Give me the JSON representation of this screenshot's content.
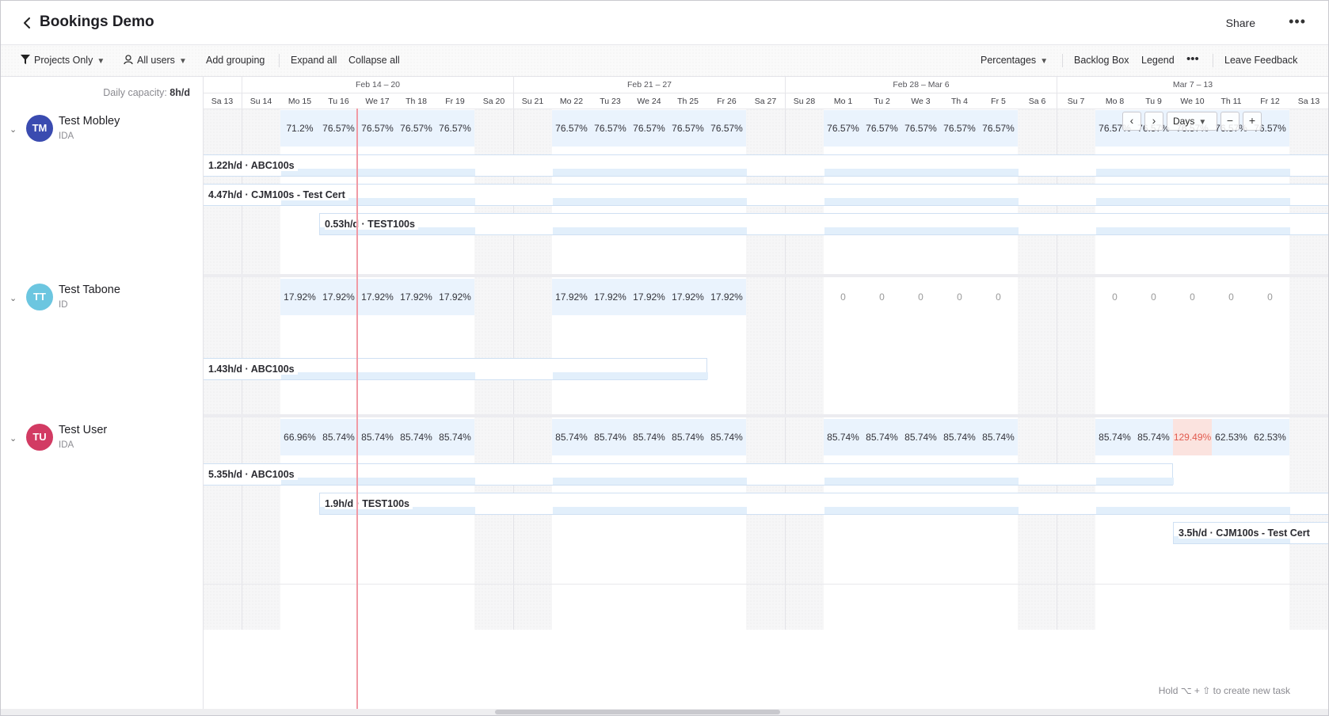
{
  "header": {
    "title": "Bookings Demo",
    "share": "Share",
    "more": "•••"
  },
  "toolbar": {
    "projects_only": "Projects Only",
    "all_users": "All users",
    "add_grouping": "Add grouping",
    "expand_all": "Expand all",
    "collapse_all": "Collapse all",
    "percentages": "Percentages",
    "backlog_box": "Backlog Box",
    "legend": "Legend",
    "more": "•••",
    "leave_feedback": "Leave Feedback"
  },
  "capacity": {
    "label": "Daily capacity:",
    "value": "8h/d"
  },
  "weeks": [
    "Feb 14 – 20",
    "Feb 21 – 27",
    "Feb 28 – Mar 6",
    "Mar 7 – 13"
  ],
  "days": [
    "Sa 13",
    "Su 14",
    "Mo 15",
    "Tu 16",
    "We 17",
    "Th 18",
    "Fr 19",
    "Sa 20",
    "Su 21",
    "Mo 22",
    "Tu 23",
    "We 24",
    "Th 25",
    "Fr 26",
    "Sa 27",
    "Su 28",
    "Mo 1",
    "Tu 2",
    "We 3",
    "Th 4",
    "Fr 5",
    "Sa 6",
    "Su 7",
    "Mo 8",
    "Tu 9",
    "We 10",
    "Th 11",
    "Fr 12",
    "Sa 13"
  ],
  "people": [
    {
      "initials": "TM",
      "name": "Test Mobley",
      "role": "IDA",
      "color": "#3a4bb0",
      "percentages": [
        "",
        "",
        "71.2%",
        "76.57%",
        "76.57%",
        "76.57%",
        "76.57%",
        "",
        "",
        "76.57%",
        "76.57%",
        "76.57%",
        "76.57%",
        "76.57%",
        "",
        "",
        "76.57%",
        "76.57%",
        "76.57%",
        "76.57%",
        "76.57%",
        "",
        "",
        "76.57%",
        "76.57%",
        "76.57%",
        "76.57%",
        "76.57%",
        ""
      ],
      "bookings": [
        {
          "label": "1.22h/d · ABC100s"
        },
        {
          "label": "4.47h/d · CJM100s - Test Cert"
        },
        {
          "label": "0.53h/d · TEST100s"
        }
      ]
    },
    {
      "initials": "TT",
      "name": "Test Tabone",
      "role": "ID",
      "color": "#6cc6e0",
      "percentages": [
        "",
        "",
        "17.92%",
        "17.92%",
        "17.92%",
        "17.92%",
        "17.92%",
        "",
        "",
        "17.92%",
        "17.92%",
        "17.92%",
        "17.92%",
        "17.92%",
        "",
        "",
        "0",
        "0",
        "0",
        "0",
        "0",
        "",
        "",
        "0",
        "0",
        "0",
        "0",
        "0",
        ""
      ],
      "bookings": [
        {
          "label": "1.43h/d · ABC100s"
        }
      ]
    },
    {
      "initials": "TU",
      "name": "Test User",
      "role": "IDA",
      "color": "#d23b63",
      "percentages": [
        "",
        "",
        "66.96%",
        "85.74%",
        "85.74%",
        "85.74%",
        "85.74%",
        "",
        "",
        "85.74%",
        "85.74%",
        "85.74%",
        "85.74%",
        "85.74%",
        "",
        "",
        "85.74%",
        "85.74%",
        "85.74%",
        "85.74%",
        "85.74%",
        "",
        "",
        "85.74%",
        "85.74%",
        "129.49%",
        "62.53%",
        "62.53%",
        ""
      ],
      "bookings": [
        {
          "label": "5.35h/d · ABC100s"
        },
        {
          "label": "1.9h/d · TEST100s"
        },
        {
          "label": "3.5h/d · CJM100s - Test Cert"
        }
      ]
    }
  ],
  "zoom": {
    "prev": "‹",
    "next": "›",
    "mode": "Days",
    "minus": "−",
    "plus": "+"
  },
  "hint": "Hold ⌥ + ⇧ to create new task"
}
